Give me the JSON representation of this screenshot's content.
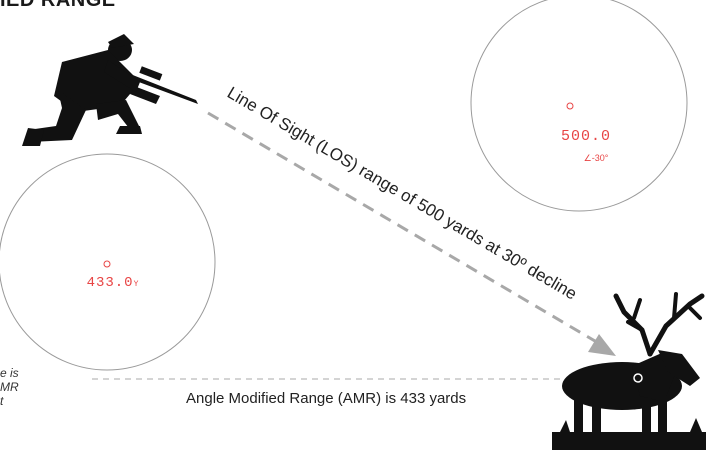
{
  "header": {
    "title": "IED RANGE"
  },
  "diagram": {
    "los_label": "Line Of Sight (LOS) range of 500 yards at 30º decline",
    "amr_label": "Angle Modified Range (AMR) is 433 yards",
    "side_note": [
      "e is",
      "MR",
      "t"
    ],
    "top_display": {
      "reading": "500.0",
      "angle": "∠-30°"
    },
    "bottom_display": {
      "reading": "433.0",
      "unit": "Y"
    },
    "colors": {
      "display_red": "#e84545",
      "silhouette": "#111111",
      "dashed_line": "#a8a8a8",
      "circle_stroke": "#9a9a9a"
    }
  }
}
